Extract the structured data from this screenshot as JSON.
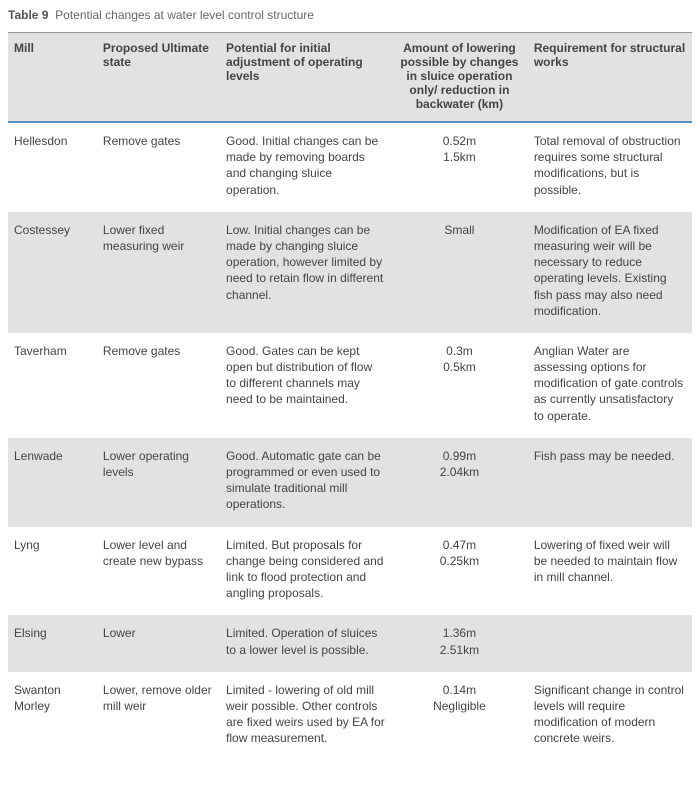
{
  "caption_label": "Table 9",
  "caption_text": "Potential changes at water level control structure",
  "table": {
    "type": "table",
    "background_color": "#ffffff",
    "stripe_color": "#e2e2e2",
    "header_border_color": "#5a8fc8",
    "text_color": "#444444",
    "font_size_pt": 9,
    "columns": [
      {
        "key": "mill",
        "label": "Mill",
        "width_pct": 13,
        "align": "left"
      },
      {
        "key": "proposed",
        "label": "Proposed Ultimate state",
        "width_pct": 18,
        "align": "left"
      },
      {
        "key": "potential",
        "label": "Potential for initial adjustment of operating levels",
        "width_pct": 25,
        "align": "left"
      },
      {
        "key": "amount",
        "label": "Amount of lowering possible by changes in sluice operation only/ reduction in backwater (km)",
        "width_pct": 20,
        "align": "center"
      },
      {
        "key": "requirement",
        "label": "Requirement for structural works",
        "width_pct": 24,
        "align": "left"
      }
    ],
    "rows": [
      {
        "mill": "Hellesdon",
        "proposed": "Remove gates",
        "potential": "Good. Initial changes can be made by removing boards and changing sluice operation.",
        "amount_line1": "0.52m",
        "amount_line2": "1.5km",
        "requirement": "Total removal of obstruction requires some structural modifications, but is possible."
      },
      {
        "mill": "Costessey",
        "proposed": "Lower fixed measuring weir",
        "potential": "Low. Initial changes can be made by changing sluice operation, however limited by need to retain flow in different channel.",
        "amount_line1": "Small",
        "amount_line2": "",
        "requirement": "Modification of EA fixed measuring weir will be necessary to reduce operating levels. Existing fish pass may also need modification."
      },
      {
        "mill": "Taverham",
        "proposed": "Remove gates",
        "potential": "Good. Gates can be kept open but distribution of flow to different channels may need to be maintained.",
        "amount_line1": "0.3m",
        "amount_line2": "0.5km",
        "requirement": "Anglian Water are assessing options for modification of gate controls as currently unsatisfactory to operate."
      },
      {
        "mill": "Lenwade",
        "proposed": "Lower operating levels",
        "potential": "Good. Automatic gate can be programmed or even used to simulate traditional mill operations.",
        "amount_line1": "0.99m",
        "amount_line2": "2.04km",
        "requirement": "Fish pass may be needed."
      },
      {
        "mill": "Lyng",
        "proposed": "Lower level and create new bypass",
        "potential": "Limited. But proposals for change being considered and link to flood protection and angling proposals.",
        "amount_line1": "0.47m",
        "amount_line2": "0.25km",
        "requirement": "Lowering of fixed weir will be needed to maintain flow in mill channel."
      },
      {
        "mill": "Elsing",
        "proposed": "Lower",
        "potential": "Limited. Operation of sluices to a lower level is possible.",
        "amount_line1": "1.36m",
        "amount_line2": "2.51km",
        "requirement": ""
      },
      {
        "mill": "Swanton Morley",
        "proposed": "Lower, remove older mill weir",
        "potential": "Limited - lowering of old mill weir possible. Other controls are fixed weirs used by EA for flow measurement.",
        "amount_line1": "0.14m",
        "amount_line2": "Negligible",
        "requirement": "Significant change in control levels will require modification of modern concrete weirs."
      }
    ]
  }
}
